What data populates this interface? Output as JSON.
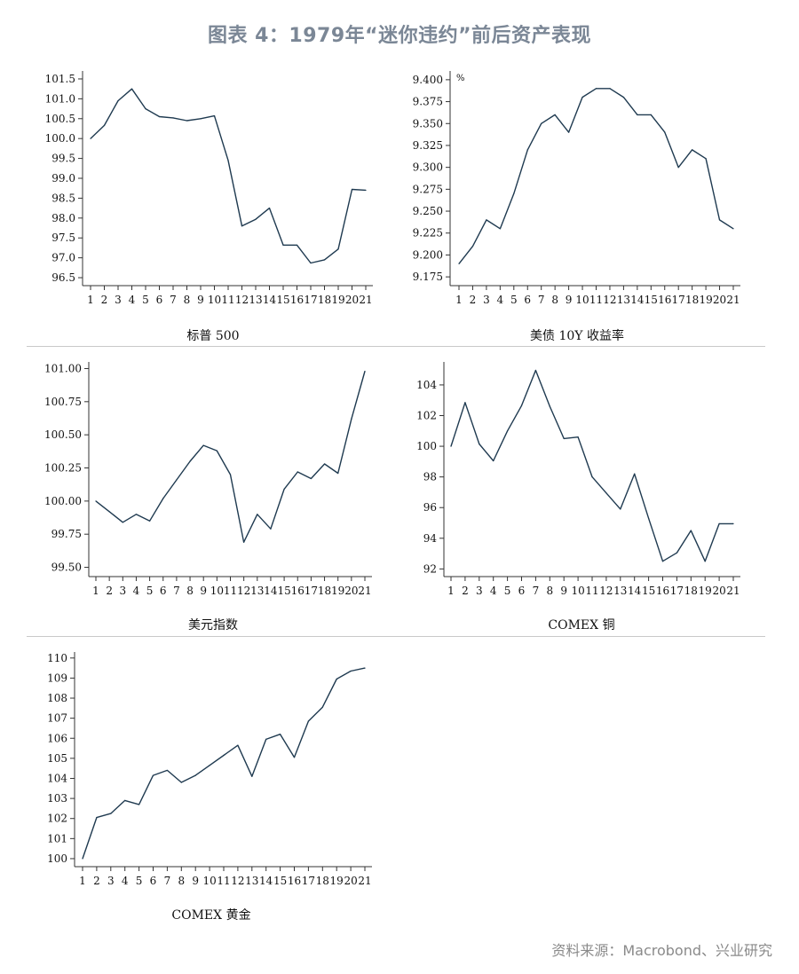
{
  "title": "图表 4：1979年“迷你违约”前后资产表现",
  "source": "资料来源：Macrobond、兴业研究",
  "line_color": "#1f3a50",
  "chart_data": [
    {
      "type": "line",
      "title": "标普 500",
      "unit": "",
      "categories": [
        "1",
        "2",
        "3",
        "4",
        "5",
        "6",
        "7",
        "8",
        "9",
        "10",
        "11",
        "12",
        "13",
        "14",
        "15",
        "16",
        "17",
        "18",
        "19",
        "20",
        "21"
      ],
      "values": [
        100.0,
        100.33,
        100.95,
        101.25,
        100.75,
        100.55,
        100.52,
        100.45,
        100.5,
        100.57,
        99.45,
        97.8,
        97.97,
        98.25,
        97.32,
        97.32,
        96.87,
        96.95,
        97.22,
        98.72,
        98.7
      ],
      "yticks": [
        "96.5",
        "97.0",
        "97.5",
        "98.0",
        "98.5",
        "99.0",
        "99.5",
        "100.0",
        "100.5",
        "101.0",
        "101.5"
      ],
      "ylim": [
        96.3,
        101.7
      ]
    },
    {
      "type": "line",
      "title": "美债 10Y 收益率",
      "unit": "%",
      "categories": [
        "1",
        "2",
        "3",
        "4",
        "5",
        "6",
        "7",
        "8",
        "9",
        "10",
        "11",
        "12",
        "13",
        "14",
        "15",
        "16",
        "17",
        "18",
        "19",
        "20",
        "21"
      ],
      "values": [
        9.19,
        9.21,
        9.24,
        9.23,
        9.27,
        9.32,
        9.35,
        9.36,
        9.34,
        9.38,
        9.39,
        9.39,
        9.38,
        9.36,
        9.36,
        9.34,
        9.3,
        9.32,
        9.31,
        9.24,
        9.23
      ],
      "yticks": [
        "9.175",
        "9.200",
        "9.225",
        "9.250",
        "9.275",
        "9.300",
        "9.325",
        "9.350",
        "9.375",
        "9.400"
      ],
      "ylim": [
        9.165,
        9.41
      ]
    },
    {
      "type": "line",
      "title": "美元指数",
      "unit": "",
      "categories": [
        "1",
        "2",
        "3",
        "4",
        "5",
        "6",
        "7",
        "8",
        "9",
        "10",
        "11",
        "12",
        "13",
        "14",
        "15",
        "16",
        "17",
        "18",
        "19",
        "20",
        "21"
      ],
      "values": [
        100.0,
        99.92,
        99.84,
        99.9,
        99.85,
        100.02,
        100.16,
        100.3,
        100.42,
        100.38,
        100.2,
        99.69,
        99.9,
        99.79,
        100.09,
        100.22,
        100.17,
        100.28,
        100.21,
        100.62,
        100.98
      ],
      "yticks": [
        "99.50",
        "99.75",
        "100.00",
        "100.25",
        "100.50",
        "100.75",
        "101.00"
      ],
      "ylim": [
        99.43,
        101.05
      ]
    },
    {
      "type": "line",
      "title": "COMEX 铜",
      "unit": "",
      "categories": [
        "1",
        "2",
        "3",
        "4",
        "5",
        "6",
        "7",
        "8",
        "9",
        "10",
        "11",
        "12",
        "13",
        "14",
        "15",
        "16",
        "17",
        "18",
        "19",
        "20",
        "21"
      ],
      "values": [
        100.0,
        102.85,
        100.15,
        99.05,
        101.0,
        102.65,
        104.95,
        102.6,
        100.5,
        100.6,
        98.0,
        96.95,
        95.9,
        98.2,
        95.3,
        92.5,
        93.05,
        94.5,
        92.5,
        94.95,
        94.95
      ],
      "yticks": [
        "92",
        "94",
        "96",
        "98",
        "100",
        "102",
        "104"
      ],
      "ylim": [
        91.5,
        105.5
      ]
    },
    {
      "type": "line",
      "title": "COMEX 黄金",
      "unit": "",
      "categories": [
        "1",
        "2",
        "3",
        "4",
        "5",
        "6",
        "7",
        "8",
        "9",
        "10",
        "11",
        "12",
        "13",
        "14",
        "15",
        "16",
        "17",
        "18",
        "19",
        "20",
        "21"
      ],
      "values": [
        100.0,
        102.05,
        102.25,
        102.9,
        102.7,
        104.15,
        104.4,
        103.8,
        104.15,
        104.65,
        105.15,
        105.65,
        104.1,
        105.95,
        106.2,
        105.05,
        106.85,
        107.55,
        108.95,
        109.35,
        109.5
      ],
      "yticks": [
        "100",
        "101",
        "102",
        "103",
        "104",
        "105",
        "106",
        "107",
        "108",
        "109",
        "110"
      ],
      "ylim": [
        99.6,
        110.3
      ]
    }
  ]
}
